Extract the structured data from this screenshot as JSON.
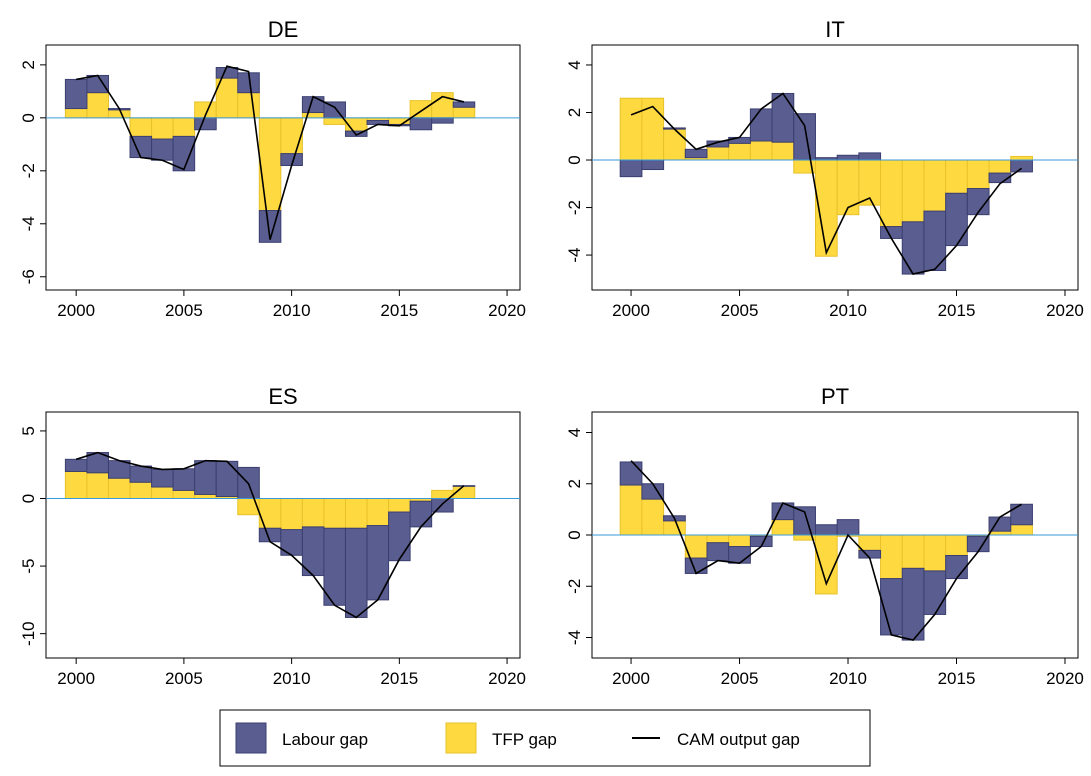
{
  "chart_data": [
    {
      "type": "bar",
      "title": "DE",
      "x": [
        2000,
        2001,
        2002,
        2003,
        2004,
        2005,
        2006,
        2007,
        2008,
        2009,
        2010,
        2011,
        2012,
        2013,
        2014,
        2015,
        2016,
        2017,
        2018
      ],
      "series": [
        {
          "name": "Labour gap",
          "type": "bar",
          "color": "#595d8f",
          "values": [
            1.1,
            0.65,
            0.05,
            -0.8,
            -0.8,
            -1.3,
            -0.45,
            0.4,
            0.75,
            -1.2,
            -0.45,
            0.6,
            0.6,
            -0.2,
            -0.15,
            -0.05,
            -0.45,
            -0.2,
            0.2
          ]
        },
        {
          "name": "TFP gap",
          "type": "bar",
          "color": "#ffd940",
          "values": [
            0.35,
            0.95,
            0.3,
            -0.7,
            -0.8,
            -0.7,
            0.6,
            1.5,
            0.95,
            -3.5,
            -1.35,
            0.2,
            -0.25,
            -0.5,
            -0.1,
            -0.25,
            0.65,
            0.95,
            0.4
          ]
        },
        {
          "name": "CAM output gap",
          "type": "line",
          "color": "#000000",
          "values": [
            1.45,
            1.6,
            0.35,
            -1.5,
            -1.6,
            -1.95,
            0.1,
            1.95,
            1.75,
            -4.6,
            -1.8,
            0.8,
            0.4,
            -0.65,
            -0.25,
            -0.3,
            0.25,
            0.8,
            0.6
          ]
        }
      ],
      "xlim": [
        1998.6,
        2020.6
      ],
      "xticks": [
        2000,
        2005,
        2010,
        2015,
        2020
      ],
      "ylim": [
        -6.5,
        2.75
      ],
      "yticks": [
        -6,
        -4,
        -2,
        0,
        2
      ]
    },
    {
      "type": "bar",
      "title": "IT",
      "x": [
        2000,
        2001,
        2002,
        2003,
        2004,
        2005,
        2006,
        2007,
        2008,
        2009,
        2010,
        2011,
        2012,
        2013,
        2014,
        2015,
        2016,
        2017,
        2018
      ],
      "series": [
        {
          "name": "Labour gap",
          "type": "bar",
          "color": "#595d8f",
          "values": [
            -0.7,
            -0.4,
            0.05,
            0.35,
            0.25,
            0.25,
            1.35,
            2.05,
            1.95,
            0.1,
            0.2,
            0.3,
            -0.5,
            -2.2,
            -2.5,
            -2.2,
            -1.1,
            -0.4,
            -0.5
          ]
        },
        {
          "name": "TFP gap",
          "type": "bar",
          "color": "#ffd940",
          "values": [
            2.6,
            2.6,
            1.3,
            0.1,
            0.55,
            0.7,
            0.8,
            0.75,
            -0.55,
            -4.05,
            -2.3,
            -1.9,
            -2.8,
            -2.6,
            -2.15,
            -1.4,
            -1.2,
            -0.55,
            0.15
          ]
        },
        {
          "name": "CAM output gap",
          "type": "line",
          "color": "#000000",
          "values": [
            1.9,
            2.25,
            1.3,
            0.45,
            0.75,
            0.95,
            2.15,
            2.8,
            1.45,
            -3.9,
            -2.0,
            -1.6,
            -3.3,
            -4.8,
            -4.6,
            -3.6,
            -2.2,
            -1.0,
            -0.35
          ]
        }
      ],
      "xlim": [
        1998.2,
        2020.6
      ],
      "xticks": [
        2000,
        2005,
        2010,
        2015,
        2020
      ],
      "ylim": [
        -5.47,
        4.84
      ],
      "yticks": [
        -4,
        -2,
        0,
        2,
        4
      ]
    },
    {
      "type": "bar",
      "title": "ES",
      "x": [
        2000,
        2001,
        2002,
        2003,
        2004,
        2005,
        2006,
        2007,
        2008,
        2009,
        2010,
        2011,
        2012,
        2013,
        2014,
        2015,
        2016,
        2017,
        2018
      ],
      "series": [
        {
          "name": "Labour gap",
          "type": "bar",
          "color": "#595d8f",
          "values": [
            0.9,
            1.5,
            1.3,
            1.2,
            1.3,
            1.6,
            2.5,
            2.6,
            2.3,
            -1.0,
            -1.9,
            -3.6,
            -5.7,
            -6.6,
            -5.5,
            -3.6,
            -1.9,
            -1.0,
            0.05
          ]
        },
        {
          "name": "TFP gap",
          "type": "bar",
          "color": "#ffd940",
          "values": [
            2.0,
            1.9,
            1.5,
            1.2,
            0.85,
            0.6,
            0.3,
            0.15,
            -1.2,
            -2.2,
            -2.3,
            -2.1,
            -2.2,
            -2.2,
            -2.0,
            -1.0,
            -0.2,
            0.6,
            0.9
          ]
        },
        {
          "name": "CAM output gap",
          "type": "line",
          "color": "#000000",
          "values": [
            2.9,
            3.4,
            2.8,
            2.4,
            2.15,
            2.2,
            2.8,
            2.75,
            1.1,
            -3.2,
            -4.2,
            -5.7,
            -7.9,
            -8.8,
            -7.5,
            -4.5,
            -2.1,
            -0.4,
            0.95
          ]
        }
      ],
      "xlim": [
        1998.6,
        2020.6
      ],
      "xticks": [
        2000,
        2005,
        2010,
        2015,
        2020
      ],
      "ylim": [
        -11.8,
        6.4
      ],
      "yticks": [
        -10,
        -5,
        0,
        5
      ]
    },
    {
      "type": "bar",
      "title": "PT",
      "x": [
        2000,
        2001,
        2002,
        2003,
        2004,
        2005,
        2006,
        2007,
        2008,
        2009,
        2010,
        2011,
        2012,
        2013,
        2014,
        2015,
        2016,
        2017,
        2018
      ],
      "series": [
        {
          "name": "Labour gap",
          "type": "bar",
          "color": "#595d8f",
          "values": [
            0.9,
            0.6,
            0.2,
            -0.6,
            -0.7,
            -0.65,
            -0.4,
            0.65,
            1.1,
            0.4,
            0.6,
            -0.3,
            -2.2,
            -2.8,
            -1.7,
            -0.9,
            -0.6,
            0.55,
            0.8
          ]
        },
        {
          "name": "TFP gap",
          "type": "bar",
          "color": "#ffd940",
          "values": [
            1.95,
            1.4,
            0.55,
            -0.9,
            -0.3,
            -0.45,
            -0.05,
            0.6,
            -0.2,
            -2.3,
            -0.05,
            -0.6,
            -1.7,
            -1.3,
            -1.4,
            -0.8,
            -0.05,
            0.15,
            0.4
          ]
        },
        {
          "name": "CAM output gap",
          "type": "line",
          "color": "#000000",
          "values": [
            2.9,
            2.0,
            0.65,
            -1.5,
            -1.0,
            -1.1,
            -0.45,
            1.25,
            0.9,
            -1.9,
            0.0,
            -0.9,
            -3.9,
            -4.1,
            -3.1,
            -1.7,
            -0.65,
            0.7,
            1.2
          ]
        }
      ],
      "xlim": [
        1998.2,
        2020.6
      ],
      "xticks": [
        2000,
        2005,
        2010,
        2015,
        2020
      ],
      "ylim": [
        -4.8,
        4.8
      ],
      "yticks": [
        -4,
        -2,
        0,
        2,
        4
      ]
    }
  ]
}
